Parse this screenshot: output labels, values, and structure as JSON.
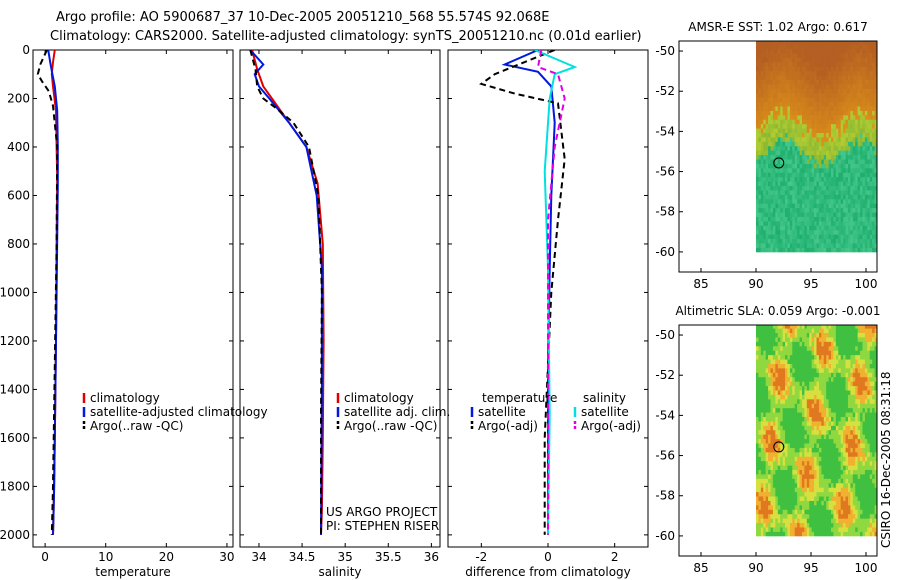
{
  "header": {
    "line1": "Argo profile: AO 5900687_37 10-Dec-2005 20051210_568 55.574S 92.068E",
    "line2": "Climatology: CARS2000. Satellite-adjusted climatology: synTS_20051210.nc (0.01d earlier)"
  },
  "side_label": "CSIRO 16-Dec-2005 08:31:18",
  "colors": {
    "climatology": "#e00000",
    "satellite": "#0018e0",
    "argo": "#000000",
    "sat_salinity": "#00e0e0",
    "argo_salinity_adj": "#e000e0"
  },
  "chart_data": [
    {
      "type": "line",
      "id": "temperature",
      "xlabel": "temperature",
      "xlim": [
        -2,
        31
      ],
      "xticks": [
        0,
        10,
        20,
        30
      ],
      "xtick_labels": [
        "0",
        "10",
        "20",
        "30"
      ],
      "ylim": [
        2050,
        0
      ],
      "yticks": [
        0,
        200,
        400,
        600,
        800,
        1000,
        1200,
        1400,
        1600,
        1800,
        2000
      ],
      "ytick_labels": [
        "0",
        "200",
        "400",
        "600",
        "800",
        "1000",
        "1200",
        "1400",
        "1600",
        "1800",
        "2000"
      ],
      "legend": [
        "climatology",
        "satellite-adjusted climatology",
        "Argo(..raw -QC)"
      ],
      "series": [
        {
          "name": "climatology",
          "color": "#e00000",
          "style": "solid",
          "x": [
            1.6,
            1.3,
            1.1,
            1.3,
            1.8,
            1.9,
            2.0,
            1.9,
            1.8,
            1.6,
            1.4,
            1.3
          ],
          "y": [
            0,
            50,
            100,
            150,
            250,
            400,
            520,
            800,
            1200,
            1600,
            1900,
            2000
          ]
        },
        {
          "name": "satellite-adjusted climatology",
          "color": "#0018e0",
          "style": "solid",
          "x": [
            0.5,
            0.9,
            1.2,
            1.6,
            2.0,
            2.1,
            2.1,
            1.9,
            1.7,
            1.5,
            1.3
          ],
          "y": [
            0,
            60,
            100,
            150,
            250,
            400,
            560,
            1000,
            1400,
            1800,
            2000
          ]
        },
        {
          "name": "Argo(..raw -QC)",
          "color": "#000000",
          "style": "dashed",
          "x": [
            0.3,
            -0.8,
            -1.2,
            -0.5,
            0.6,
            1.3,
            2.0,
            1.9,
            1.6,
            1.3,
            1.1
          ],
          "y": [
            0,
            60,
            100,
            130,
            170,
            230,
            400,
            800,
            1300,
            1800,
            2000
          ]
        }
      ]
    },
    {
      "type": "line",
      "id": "salinity",
      "xlabel": "salinity",
      "xlim": [
        33.78,
        36.1
      ],
      "xticks": [
        34,
        34.5,
        35,
        35.5,
        36
      ],
      "xtick_labels": [
        "34",
        "34.5",
        "35",
        "35.5",
        "36"
      ],
      "ylim": [
        2050,
        0
      ],
      "yticks": [
        0,
        200,
        400,
        600,
        800,
        1000,
        1200,
        1400,
        1600,
        1800,
        2000
      ],
      "legend": [
        "climatology",
        "satellite adj. clim.",
        "Argo(..raw -QC)"
      ],
      "annotations": [
        "US ARGO PROJECT",
        "PI: STEPHEN RISER"
      ],
      "series": [
        {
          "name": "climatology",
          "color": "#e00000",
          "style": "solid",
          "x": [
            33.92,
            33.98,
            34.05,
            34.15,
            34.35,
            34.55,
            34.68,
            34.74,
            34.75,
            34.74,
            34.73,
            34.72
          ],
          "y": [
            0,
            80,
            150,
            200,
            300,
            400,
            550,
            800,
            1200,
            1600,
            1900,
            2000
          ]
        },
        {
          "name": "satellite adj. clim.",
          "color": "#0018e0",
          "style": "solid",
          "x": [
            33.9,
            34.05,
            33.95,
            34.0,
            34.12,
            34.35,
            34.55,
            34.67,
            34.73,
            34.73,
            34.72
          ],
          "y": [
            0,
            60,
            100,
            150,
            200,
            300,
            400,
            600,
            900,
            1400,
            2000
          ]
        },
        {
          "name": "Argo(..raw -QC)",
          "color": "#000000",
          "style": "dashed",
          "x": [
            33.9,
            33.96,
            33.98,
            34.05,
            34.2,
            34.4,
            34.58,
            34.69,
            34.73,
            34.72,
            34.72
          ],
          "y": [
            0,
            80,
            150,
            200,
            240,
            300,
            400,
            600,
            1000,
            1500,
            2000
          ]
        }
      ]
    },
    {
      "type": "line",
      "id": "difference",
      "xlabel": "difference from climatology",
      "xlim": [
        -3.0,
        3.0
      ],
      "xticks": [
        -2,
        0,
        2
      ],
      "xtick_labels": [
        "-2",
        "0",
        "2"
      ],
      "ylim": [
        2050,
        0
      ],
      "yticks": [
        0,
        200,
        400,
        600,
        800,
        1000,
        1200,
        1400,
        1600,
        1800,
        2000
      ],
      "legend_groups": [
        {
          "title": "temperature",
          "items": [
            "satellite",
            "Argo(-adj)"
          ]
        },
        {
          "title": "salinity",
          "items": [
            "satellite",
            "Argo(-adj)"
          ]
        }
      ],
      "series": [
        {
          "name": "temperature satellite",
          "color": "#0018e0",
          "style": "solid",
          "x": [
            -0.3,
            -1.3,
            -0.3,
            0.1,
            0.2,
            0.1,
            0.05,
            0.0,
            0.0,
            0.0
          ],
          "y": [
            0,
            60,
            90,
            150,
            300,
            600,
            900,
            1300,
            1700,
            2000
          ]
        },
        {
          "name": "temperature Argo(-adj)",
          "color": "#000000",
          "style": "dashed",
          "x": [
            0.2,
            -1.6,
            -2.0,
            -1.0,
            0.3,
            0.5,
            0.3,
            0.1,
            -0.1,
            -0.1
          ],
          "y": [
            0,
            100,
            140,
            180,
            220,
            450,
            700,
            1000,
            1600,
            2000
          ]
        },
        {
          "name": "salinity satellite",
          "color": "#00e0e0",
          "style": "solid",
          "x": [
            -0.4,
            0.8,
            0.2,
            0.05,
            -0.1,
            0.0,
            0.05,
            0.0
          ],
          "y": [
            0,
            70,
            100,
            200,
            500,
            900,
            1500,
            2000
          ]
        },
        {
          "name": "salinity Argo(-adj)",
          "color": "#e000e0",
          "style": "dashed",
          "x": [
            -0.2,
            -0.3,
            0.3,
            0.5,
            0.2,
            0.0,
            0.0,
            0.0
          ],
          "y": [
            0,
            70,
            100,
            200,
            400,
            700,
            1500,
            2000
          ]
        }
      ]
    },
    {
      "type": "heatmap",
      "id": "sst_map",
      "title": "AMSR-E SST: 1.02 Argo: 0.617",
      "xlim": [
        83,
        101
      ],
      "ylim": [
        -61,
        -49.5
      ],
      "xticks": [
        85,
        90,
        95,
        100
      ],
      "yticks": [
        -50,
        -52,
        -54,
        -56,
        -58,
        -60
      ],
      "data_extent": {
        "lon": [
          90,
          101
        ],
        "lat": [
          -60,
          -49.5
        ]
      },
      "float_marker": {
        "lon": 92.07,
        "lat": -55.57
      },
      "colorscale": "warm-north-green-south"
    },
    {
      "type": "heatmap",
      "id": "sla_map",
      "title": "Altimetric SLA: 0.059 Argo: -0.001",
      "xlim": [
        83,
        101
      ],
      "ylim": [
        -61,
        -49.5
      ],
      "xticks": [
        85,
        90,
        95,
        100
      ],
      "yticks": [
        -50,
        -52,
        -54,
        -56,
        -58,
        -60
      ],
      "data_extent": {
        "lon": [
          90,
          101
        ],
        "lat": [
          -60,
          -49.5
        ]
      },
      "float_marker": {
        "lon": 92.07,
        "lat": -55.57
      },
      "colorscale": "green-yellow-orange-patches"
    }
  ]
}
